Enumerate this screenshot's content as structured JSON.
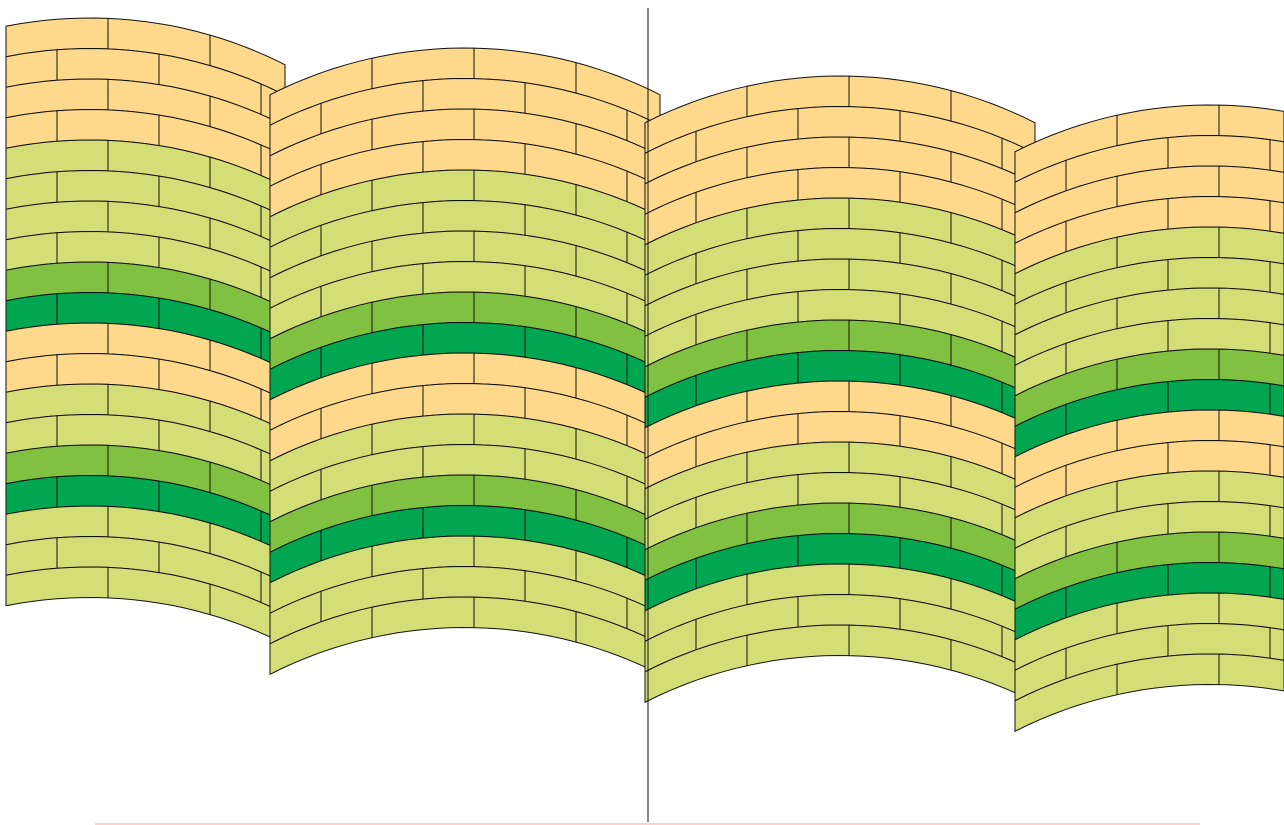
{
  "pattern": {
    "name": "fan-arch-brick-pattern",
    "colors": {
      "peach": "#fed98b",
      "yellow-green": "#d4de76",
      "light-green": "#80c141",
      "green": "#00a650",
      "mortar": "#111111",
      "background": "#ffffff",
      "baseline": "#f3b7a8"
    },
    "bands": [
      {
        "name": "peach-band",
        "color": "peach",
        "rows": 4
      },
      {
        "name": "yellow-green-band",
        "color": "yellow-green",
        "rows": 4
      },
      {
        "name": "light-green-band",
        "color": "light-green",
        "rows": 1
      },
      {
        "name": "green-band",
        "color": "green",
        "rows": 1
      },
      {
        "name": "peach-band",
        "color": "peach",
        "rows": 2
      },
      {
        "name": "yellow-green-band",
        "color": "yellow-green",
        "rows": 2
      },
      {
        "name": "light-green-band",
        "color": "light-green",
        "rows": 1
      },
      {
        "name": "green-band",
        "color": "green",
        "rows": 1
      },
      {
        "name": "yellow-green-band",
        "color": "yellow-green",
        "rows": 3
      }
    ]
  }
}
